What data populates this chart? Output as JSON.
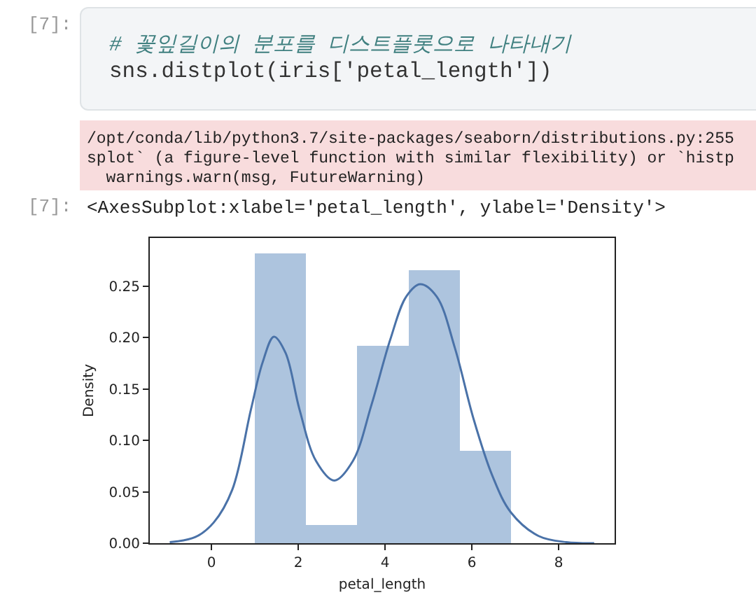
{
  "chart_data": {
    "type": "histogram",
    "xlabel": "petal_length",
    "ylabel": "Density",
    "annotations": [
      "[7]:",
      "# 꽃잎길이의 분포를 디스트플롯으로 나타내기",
      "sns.distplot(iris['petal_length'])",
      "/opt/conda/lib/python3.7/site-packages/seaborn/distributions.py:255",
      "splot` (a figure-level function with similar flexibility) or `histp",
      "  warnings.warn(msg, FutureWarning)",
      "[7]:",
      "<AxesSubplot:xlabel='petal_length', ylabel='Density'>"
    ],
    "xlim": [
      -1.42,
      9.29
    ],
    "xticks": [
      0,
      2,
      4,
      6,
      8
    ],
    "ylim": [
      0,
      0.297
    ],
    "yticks": [
      {
        "value": 0,
        "label": "0.00"
      },
      {
        "value": 0.05,
        "label": "0.05"
      },
      {
        "value": 0.1,
        "label": "0.10"
      },
      {
        "value": 0.15,
        "label": "0.15"
      },
      {
        "value": 0.2,
        "label": "0.20"
      },
      {
        "value": 0.25,
        "label": "0.25"
      }
    ],
    "series": [
      {
        "color": "#adc4de",
        "bins": [
          1,
          2.18,
          3.36,
          4.54,
          5.72,
          6.9
        ],
        "values": [
          0.282,
          0.018,
          0.192,
          0.266,
          0.09
        ]
      },
      {
        "type": "line",
        "color": "#4a72a8",
        "x": [
          -0.96,
          -0.37,
          0.05,
          0.48,
          0.91,
          1.18,
          1.44,
          1.71,
          2.03,
          2.41,
          2.83,
          3.26,
          3.69,
          4.12,
          4.49,
          4.81,
          5.19,
          5.61,
          6.04,
          6.47,
          6.9,
          7.54,
          8.18,
          8.82
        ],
        "values": [
          0.001,
          0.006,
          0.02,
          0.052,
          0.13,
          0.176,
          0.201,
          0.185,
          0.13,
          0.08,
          0.061,
          0.08,
          0.135,
          0.198,
          0.24,
          0.252,
          0.24,
          0.19,
          0.121,
          0.066,
          0.03,
          0.007,
          0.001,
          0
        ]
      }
    ]
  }
}
